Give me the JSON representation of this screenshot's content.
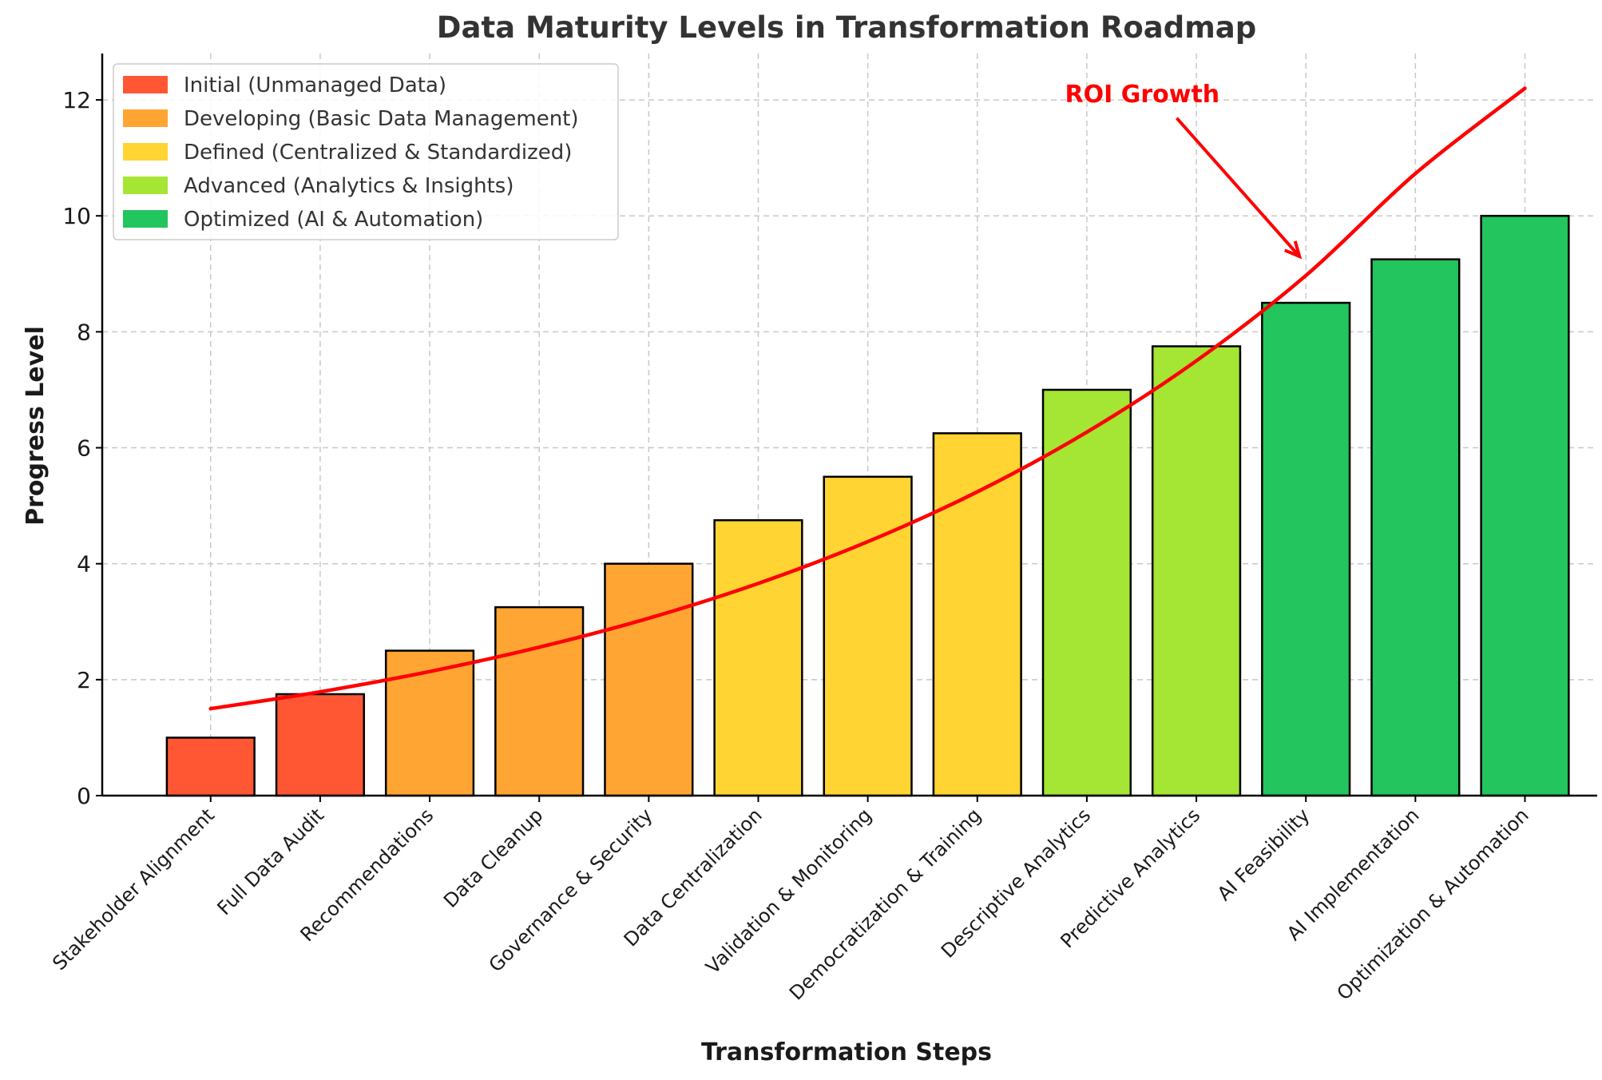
{
  "chart_data": {
    "type": "bar",
    "title": "Data Maturity Levels in Transformation Roadmap",
    "xlabel": "Transformation Steps",
    "ylabel": "Progress Level",
    "ylim": [
      0,
      12.8
    ],
    "yticks": [
      0,
      2,
      4,
      6,
      8,
      10,
      12
    ],
    "grid": true,
    "legend_position": "top-left",
    "categories": [
      "Stakeholder Alignment",
      "Full Data Audit",
      "Recommendations",
      "Data Cleanup",
      "Governance & Security",
      "Data Centralization",
      "Validation & Monitoring",
      "Democratization & Training",
      "Descriptive Analytics",
      "Predictive Analytics",
      "AI Feasibility",
      "AI Implementation",
      "Optimization & Automation"
    ],
    "values": [
      1.0,
      1.75,
      2.5,
      3.25,
      4.0,
      4.75,
      5.5,
      6.25,
      7.0,
      7.75,
      8.5,
      9.25,
      10.0
    ],
    "bar_levels": [
      0,
      0,
      1,
      1,
      1,
      2,
      2,
      2,
      3,
      3,
      4,
      4,
      4
    ],
    "levels": [
      {
        "name": "Initial (Unmanaged Data)",
        "color": "#ff5733"
      },
      {
        "name": "Developing (Basic Data Management)",
        "color": "#ffa533"
      },
      {
        "name": "Defined (Centralized & Standardized)",
        "color": "#ffd433"
      },
      {
        "name": "Advanced (Analytics & Insights)",
        "color": "#a5e533"
      },
      {
        "name": "Optimized (AI & Automation)",
        "color": "#22c55e"
      }
    ],
    "roi_curve": {
      "color": "#ff0000",
      "x": [
        0,
        1,
        2,
        3,
        4,
        5,
        6,
        7,
        8,
        9,
        10,
        11,
        12
      ],
      "y": [
        1.5,
        1.79,
        2.14,
        2.56,
        3.06,
        3.66,
        4.38,
        5.24,
        6.27,
        7.5,
        8.97,
        10.73,
        12.2
      ]
    },
    "annotation": {
      "text": "ROI Growth",
      "color": "#ff0000",
      "text_x": 7.8,
      "text_y": 12.1,
      "arrow_x": 10.0,
      "arrow_y": 9.3
    }
  }
}
